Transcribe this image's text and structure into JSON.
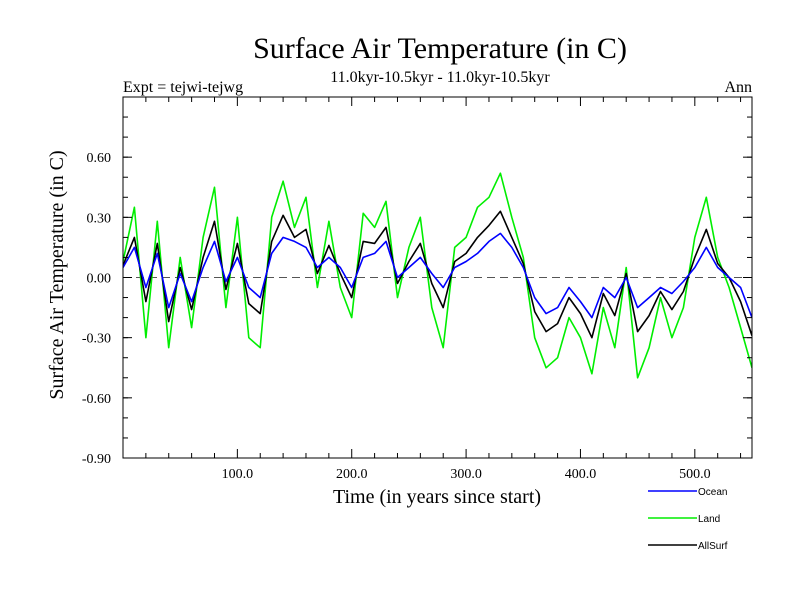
{
  "chart_data": {
    "type": "line",
    "title": "Surface Air Temperature (in C)",
    "subtitle": "11.0kyr-10.5kyr - 11.0kyr-10.5kyr",
    "left_label": "Expt = tejwi-tejwg",
    "right_label": "Ann",
    "xlabel": "Time (in years since start)",
    "ylabel": "Surface Air Temperature (in C)",
    "xlim": [
      0,
      550
    ],
    "ylim": [
      -0.9,
      0.9
    ],
    "x_ticks": [
      100,
      200,
      300,
      400,
      500
    ],
    "x_tick_labels": [
      "100.0",
      "200.0",
      "300.0",
      "400.0",
      "500.0"
    ],
    "y_ticks": [
      -0.9,
      -0.6,
      -0.3,
      0.0,
      0.3,
      0.6
    ],
    "y_tick_labels": [
      "-0.90",
      "-0.60",
      "-0.30",
      "0.00",
      "0.30",
      "0.60"
    ],
    "zero_line": "dashed",
    "legend_placement": "bottom-right, below plot",
    "colors": {
      "Ocean": "#0000ff",
      "Land": "#00ee00",
      "AllSurf": "#000000"
    },
    "series_order": [
      "Land",
      "AllSurf",
      "Ocean"
    ],
    "series": [
      {
        "name": "Ocean",
        "x": [
          0,
          10,
          20,
          30,
          40,
          50,
          60,
          70,
          80,
          90,
          100,
          110,
          120,
          130,
          140,
          150,
          160,
          170,
          180,
          190,
          200,
          210,
          220,
          230,
          240,
          250,
          260,
          270,
          280,
          290,
          300,
          310,
          320,
          330,
          340,
          350,
          360,
          370,
          380,
          390,
          400,
          410,
          420,
          430,
          440,
          450,
          460,
          470,
          480,
          490,
          500,
          510,
          520,
          530,
          540,
          550
        ],
        "values": [
          0.05,
          0.15,
          -0.05,
          0.12,
          -0.15,
          0.02,
          -0.12,
          0.05,
          0.18,
          -0.02,
          0.1,
          -0.05,
          -0.1,
          0.12,
          0.2,
          0.18,
          0.15,
          0.05,
          0.1,
          0.05,
          -0.05,
          0.1,
          0.12,
          0.18,
          0.0,
          0.05,
          0.1,
          0.02,
          -0.05,
          0.05,
          0.08,
          0.12,
          0.18,
          0.22,
          0.15,
          0.05,
          -0.1,
          -0.18,
          -0.15,
          -0.05,
          -0.12,
          -0.2,
          -0.05,
          -0.1,
          0.0,
          -0.15,
          -0.1,
          -0.05,
          -0.08,
          -0.02,
          0.05,
          0.15,
          0.05,
          0.0,
          -0.05,
          -0.2
        ]
      },
      {
        "name": "Land",
        "x": [
          0,
          10,
          20,
          30,
          40,
          50,
          60,
          70,
          80,
          90,
          100,
          110,
          120,
          130,
          140,
          150,
          160,
          170,
          180,
          190,
          200,
          210,
          220,
          230,
          240,
          250,
          260,
          270,
          280,
          290,
          300,
          310,
          320,
          330,
          340,
          350,
          360,
          370,
          380,
          390,
          400,
          410,
          420,
          430,
          440,
          450,
          460,
          470,
          480,
          490,
          500,
          510,
          520,
          530,
          540,
          550
        ],
        "values": [
          0.08,
          0.35,
          -0.3,
          0.28,
          -0.35,
          0.1,
          -0.25,
          0.2,
          0.45,
          -0.15,
          0.3,
          -0.3,
          -0.35,
          0.3,
          0.48,
          0.25,
          0.4,
          -0.05,
          0.28,
          -0.05,
          -0.2,
          0.32,
          0.25,
          0.38,
          -0.1,
          0.15,
          0.3,
          -0.15,
          -0.35,
          0.15,
          0.2,
          0.35,
          0.4,
          0.52,
          0.3,
          0.1,
          -0.3,
          -0.45,
          -0.4,
          -0.2,
          -0.3,
          -0.48,
          -0.15,
          -0.35,
          0.05,
          -0.5,
          -0.35,
          -0.1,
          -0.3,
          -0.15,
          0.2,
          0.4,
          0.1,
          -0.05,
          -0.25,
          -0.45
        ]
      },
      {
        "name": "AllSurf",
        "x": [
          0,
          10,
          20,
          30,
          40,
          50,
          60,
          70,
          80,
          90,
          100,
          110,
          120,
          130,
          140,
          150,
          160,
          170,
          180,
          190,
          200,
          210,
          220,
          230,
          240,
          250,
          260,
          270,
          280,
          290,
          300,
          310,
          320,
          330,
          340,
          350,
          360,
          370,
          380,
          390,
          400,
          410,
          420,
          430,
          440,
          450,
          460,
          470,
          480,
          490,
          500,
          510,
          520,
          530,
          540,
          550
        ],
        "values": [
          0.06,
          0.2,
          -0.12,
          0.17,
          -0.22,
          0.05,
          -0.16,
          0.1,
          0.28,
          -0.06,
          0.17,
          -0.13,
          -0.18,
          0.18,
          0.31,
          0.2,
          0.24,
          0.02,
          0.16,
          0.02,
          -0.1,
          0.18,
          0.17,
          0.25,
          -0.03,
          0.08,
          0.17,
          -0.03,
          -0.15,
          0.08,
          0.12,
          0.2,
          0.26,
          0.33,
          0.2,
          0.07,
          -0.17,
          -0.27,
          -0.23,
          -0.1,
          -0.18,
          -0.3,
          -0.08,
          -0.19,
          0.02,
          -0.27,
          -0.19,
          -0.07,
          -0.16,
          -0.07,
          0.1,
          0.24,
          0.07,
          0.0,
          -0.12,
          -0.29
        ]
      }
    ]
  }
}
